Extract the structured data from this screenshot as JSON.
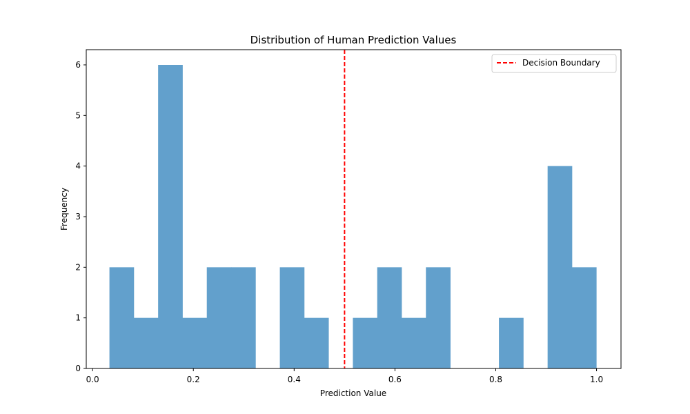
{
  "chart_data": {
    "type": "bar",
    "title": "Distribution of Human Prediction Values",
    "xlabel": "Prediction Value",
    "ylabel": "Frequency",
    "xlim": [
      -0.0125,
      1.0485
    ],
    "ylim": [
      0,
      6.3
    ],
    "x_ticks": [
      0.0,
      0.2,
      0.4,
      0.6,
      0.8,
      1.0
    ],
    "x_tick_labels": [
      "0.0",
      "0.2",
      "0.4",
      "0.6",
      "0.8",
      "1.0"
    ],
    "y_ticks": [
      0,
      1,
      2,
      3,
      4,
      5,
      6
    ],
    "y_tick_labels": [
      "0",
      "1",
      "2",
      "3",
      "4",
      "5",
      "6"
    ],
    "bin_edges": [
      0.0335,
      0.0818,
      0.1301,
      0.1784,
      0.2267,
      0.275,
      0.3233,
      0.3716,
      0.4199,
      0.4682,
      0.5165,
      0.5648,
      0.6131,
      0.6614,
      0.7097,
      0.758,
      0.8063,
      0.8546,
      0.9029,
      0.9512,
      0.9995
    ],
    "counts": [
      2,
      1,
      6,
      1,
      2,
      2,
      0,
      2,
      1,
      0,
      1,
      2,
      1,
      2,
      0,
      0,
      1,
      0,
      4,
      2
    ],
    "bar_color": "#62a0cc",
    "boundary": {
      "x": 0.5,
      "color": "#ff0000",
      "style": "dashed"
    },
    "legend": {
      "position": "top-right",
      "entries": [
        "Decision Boundary"
      ]
    },
    "grid": false
  }
}
